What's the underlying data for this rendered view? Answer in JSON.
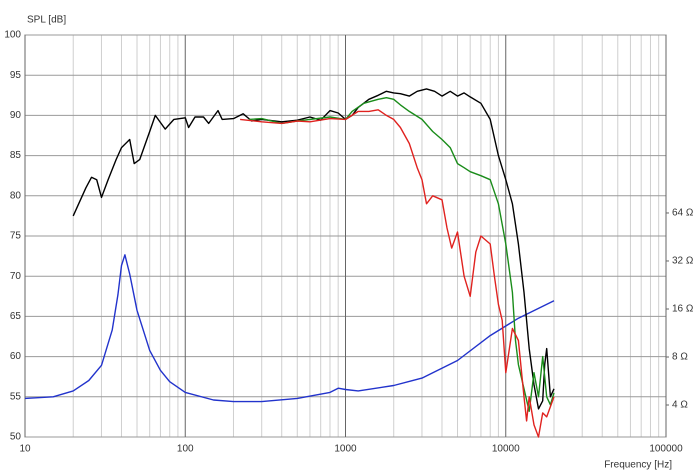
{
  "chart_data": {
    "type": "line",
    "y_label": "SPL [dB]",
    "x_label": "Frequency [Hz]",
    "x_log": true,
    "y2_log": true,
    "grid": true,
    "xlim": [
      10,
      100000
    ],
    "xticks": [
      10,
      100,
      1000,
      10000,
      100000
    ],
    "xminorticks": [
      20,
      30,
      40,
      50,
      60,
      70,
      80,
      90,
      200,
      300,
      400,
      500,
      600,
      700,
      800,
      900,
      2000,
      3000,
      4000,
      5000,
      6000,
      7000,
      8000,
      9000,
      20000,
      30000,
      40000,
      50000,
      60000,
      70000,
      80000,
      90000
    ],
    "ylim": [
      50,
      100
    ],
    "yticks": [
      50,
      55,
      60,
      65,
      70,
      75,
      80,
      85,
      90,
      95,
      100
    ],
    "y2lim": [
      2.52,
      836
    ],
    "y2ticks": [
      {
        "value": 4,
        "label": "4 Ω"
      },
      {
        "value": 8,
        "label": "8 Ω"
      },
      {
        "value": 16,
        "label": "16 Ω"
      },
      {
        "value": 32,
        "label": "32 Ω"
      },
      {
        "value": 64,
        "label": "64 Ω"
      }
    ],
    "series": [
      {
        "color": "#000000",
        "x": [
          20,
          24,
          26,
          28,
          30,
          33,
          37,
          40,
          45,
          48,
          52,
          60,
          65,
          75,
          85,
          100,
          105,
          115,
          130,
          140,
          160,
          170,
          200,
          230,
          260,
          300,
          400,
          500,
          600,
          700,
          800,
          900,
          1000,
          1100,
          1200,
          1400,
          1600,
          1800,
          2000,
          2200,
          2500,
          2800,
          3200,
          3600,
          4000,
          4500,
          5000,
          5500,
          6000,
          7000,
          8000,
          9000,
          10000,
          11000,
          12000,
          13000,
          14000,
          15000,
          16000,
          17000,
          17500,
          18000,
          19000,
          20000
        ],
        "values": [
          77.5,
          81,
          82.3,
          82,
          79.8,
          82,
          84.5,
          86,
          87,
          84,
          84.5,
          88,
          90,
          88.3,
          89.5,
          89.7,
          88.5,
          89.8,
          89.8,
          89,
          90.6,
          89.5,
          89.6,
          90.2,
          89.3,
          89.5,
          89.2,
          89.4,
          89.8,
          89.4,
          90.6,
          90.3,
          89.5,
          90,
          91,
          92,
          92.5,
          93,
          92.8,
          92.7,
          92.4,
          93,
          93.3,
          93,
          92.4,
          93,
          92.4,
          92.8,
          92.3,
          91.5,
          89.5,
          85,
          82,
          79,
          74,
          68,
          61,
          56.5,
          53.5,
          54.5,
          59,
          61,
          55,
          56
        ]
      },
      {
        "color": "#1a8c1a",
        "x": [
          250,
          300,
          400,
          500,
          600,
          800,
          1000,
          1100,
          1300,
          1600,
          1800,
          2000,
          2200,
          2500,
          3000,
          3500,
          4000,
          4500,
          5000,
          5500,
          6000,
          7000,
          8000,
          9000,
          10000,
          11000,
          11500,
          12000,
          13000,
          14000,
          15000,
          16000,
          17000,
          18000,
          19000,
          20000
        ],
        "values": [
          89.5,
          89.6,
          89,
          89.3,
          89.5,
          89.8,
          89.5,
          90.5,
          91.5,
          92,
          92.2,
          92,
          91.3,
          90.5,
          89.5,
          88,
          87,
          86,
          84,
          83.5,
          83,
          82.5,
          82,
          79,
          74,
          68,
          62,
          59,
          56,
          53.2,
          58,
          55,
          60,
          55,
          54,
          55.5
        ]
      },
      {
        "color": "#e0221f",
        "x": [
          220,
          300,
          400,
          500,
          600,
          800,
          1000,
          1200,
          1400,
          1600,
          1800,
          2000,
          2200,
          2500,
          2800,
          3000,
          3200,
          3500,
          4000,
          4300,
          4600,
          5000,
          5500,
          6000,
          6500,
          7000,
          8000,
          8500,
          9000,
          9500,
          10000,
          11000,
          12000,
          13000,
          13500,
          14000,
          15000,
          16000,
          17000,
          18000,
          20000
        ],
        "values": [
          89.5,
          89.2,
          89,
          89.3,
          89.2,
          89.6,
          89.5,
          90.5,
          90.5,
          90.7,
          90,
          89.5,
          88.5,
          86.5,
          83.5,
          82,
          79,
          80,
          79.5,
          76,
          73.5,
          75.5,
          70,
          67.5,
          73,
          75,
          74,
          70,
          66.5,
          64.5,
          58,
          63.5,
          62,
          55,
          52,
          55,
          51.5,
          50,
          53,
          52.5,
          55
        ]
      },
      {
        "color": "#2233cc",
        "axis": "y2",
        "x": [
          10,
          15,
          20,
          25,
          30,
          35,
          38,
          40,
          42,
          45,
          50,
          60,
          70,
          80,
          100,
          150,
          200,
          300,
          500,
          800,
          900,
          1000,
          1200,
          2000,
          3000,
          5000,
          8000,
          12000,
          20000
        ],
        "values": [
          4.4,
          4.5,
          4.9,
          5.7,
          7.1,
          11.8,
          19.6,
          30,
          35,
          26.5,
          15.7,
          8.8,
          6.6,
          5.6,
          4.8,
          4.3,
          4.2,
          4.2,
          4.4,
          4.8,
          5.1,
          5,
          4.9,
          5.3,
          5.9,
          7.6,
          10.9,
          14,
          18
        ]
      }
    ]
  }
}
